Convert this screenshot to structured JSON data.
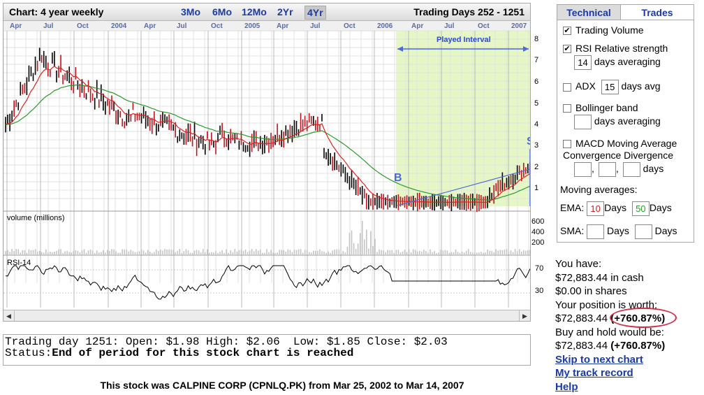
{
  "chart": {
    "title": "Chart: 4 year weekly",
    "ranges": [
      "3Mo",
      "6Mo",
      "12Mo",
      "2Yr",
      "4Yr"
    ],
    "active_range": "4Yr",
    "trading_days": "Trading Days 252 - 1251",
    "time_labels": [
      "Apr",
      "Jul",
      "Oct",
      "2004",
      "Apr",
      "Jul",
      "Oct",
      "2005",
      "Apr",
      "Jul",
      "Oct",
      "2006",
      "Apr",
      "Jul",
      "Oct",
      "2007"
    ],
    "price_ticks": [
      "8",
      "7",
      "6",
      "5",
      "4",
      "3",
      "2",
      "1"
    ],
    "played_interval_label": "Played Interval",
    "buy_marker": "B",
    "sell_marker": "S",
    "volume_label": "volume (millions)",
    "volume_ticks": [
      "600",
      "400",
      "200"
    ],
    "rsi_label": "RSI-14",
    "rsi_ticks": [
      "70",
      "30"
    ],
    "colors": {
      "price_bar_up": "#000000",
      "price_bar_down": "#c0141e",
      "ema_short": "#e02020",
      "ema_long": "#2a9a2a",
      "played_bg": "#e6f7c6",
      "trend_line": "#4a6ad8"
    }
  },
  "status": {
    "line1": "Trading day 1251: Open: $1.98 High: $2.06  Low: $1.85 Close: $2.03",
    "line2_prefix": "Status:",
    "line2_text": "End of period for this stock chart is reached"
  },
  "footer": "This stock was CALPINE CORP (CPNLQ.PK) from Mar 25, 2002 to Mar 14, 2007",
  "panel": {
    "tabs": [
      "Technical",
      "Trades"
    ],
    "trading_volume": {
      "label": "Trading Volume",
      "checked": true
    },
    "rsi": {
      "label": "RSI Relative strength",
      "checked": true,
      "days": "14",
      "suffix": "days averaging"
    },
    "adx": {
      "label": "ADX",
      "checked": false,
      "days": "15",
      "suffix": "days avg"
    },
    "bollinger": {
      "label": "Bollinger band",
      "checked": false,
      "days": "",
      "suffix": "days averaging"
    },
    "macd": {
      "label1": "MACD Moving Average",
      "label2": "Convergence Divergence",
      "checked": false,
      "v1": "",
      "v2": "",
      "v3": "",
      "suffix": "days"
    },
    "moving_averages_label": "Moving averages:",
    "ema": {
      "label": "EMA:",
      "v1": "10",
      "v2": "50",
      "suffix": "Days"
    },
    "sma": {
      "label": "SMA:",
      "v1": "",
      "v2": "",
      "suffix": "Days"
    }
  },
  "account": {
    "you_have": "You have:",
    "cash": "$72,883.44 in cash",
    "shares": "$0.00 in shares",
    "position_label": "Your position is worth:",
    "position_value": "$72,883.44",
    "position_pct": "(+760.87%)",
    "buyhold_label": "Buy and hold would be:",
    "buyhold_value": "$72,883.44",
    "buyhold_pct": "(+760.87%)",
    "links": [
      "Skip to next chart",
      "My track record",
      "Help"
    ]
  }
}
